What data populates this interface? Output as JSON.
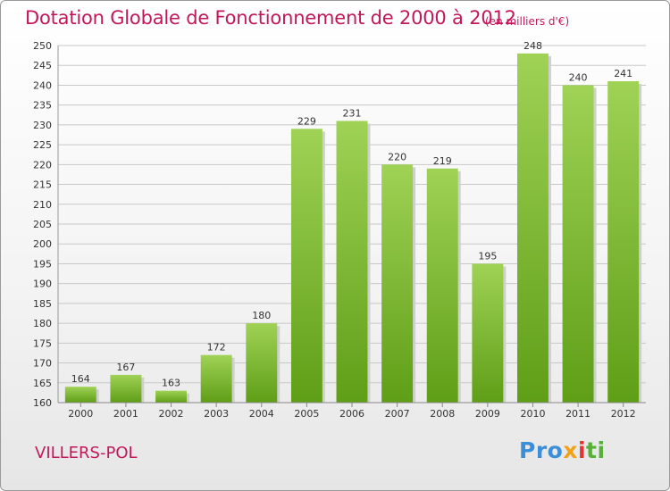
{
  "title": "Dotation Globale de Fonctionnement de 2000 à 2012",
  "unit": "(en milliers d'€)",
  "commune": "VILLERS-POL",
  "logo": {
    "p1": "Pro",
    "p2": "x",
    "p3": "i",
    "p4": "ti"
  },
  "colors": {
    "bar_top": "#9fd255",
    "bar_bottom": "#5f9e17",
    "title": "#c2185b"
  },
  "chart_data": {
    "type": "bar",
    "title": "Dotation Globale de Fonctionnement de 2000 à 2012",
    "xlabel": "",
    "ylabel": "",
    "categories": [
      "2000",
      "2001",
      "2002",
      "2003",
      "2004",
      "2005",
      "2006",
      "2007",
      "2008",
      "2009",
      "2010",
      "2011",
      "2012"
    ],
    "values": [
      164,
      167,
      163,
      172,
      180,
      229,
      231,
      220,
      219,
      195,
      248,
      240,
      241
    ],
    "ylim": [
      160,
      250
    ],
    "yticks": [
      160,
      165,
      170,
      175,
      180,
      185,
      190,
      195,
      200,
      205,
      210,
      215,
      220,
      225,
      230,
      235,
      240,
      245,
      250
    ],
    "grid": true,
    "legend": "none"
  }
}
